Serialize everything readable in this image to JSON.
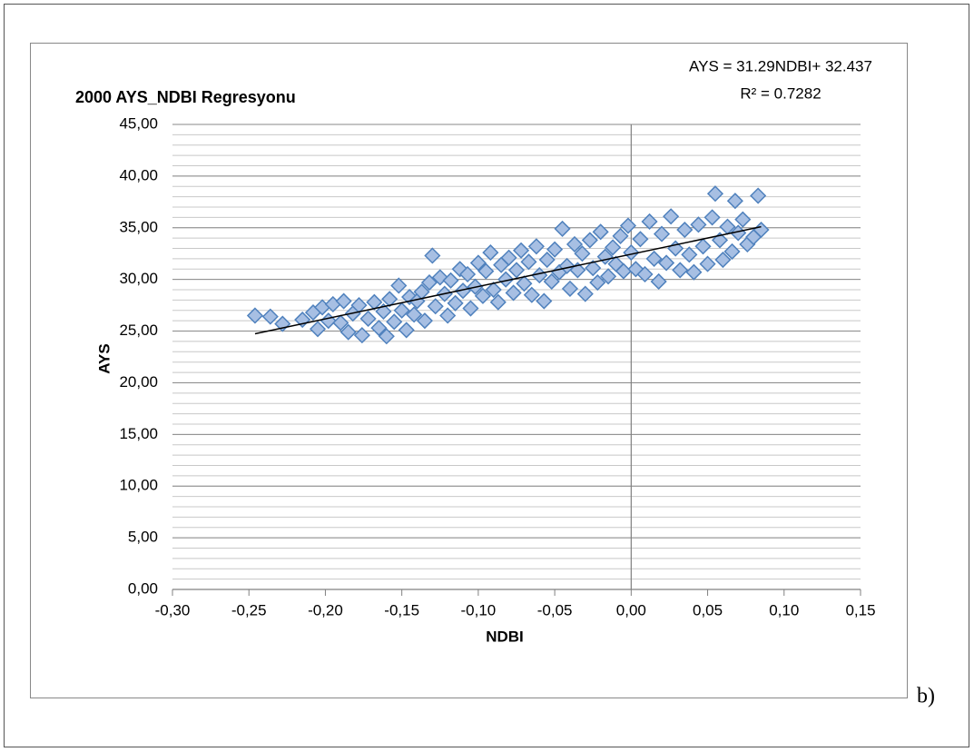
{
  "chart_data": {
    "type": "scatter",
    "title": "2000 AYS_NDBI Regresyonu",
    "equation": "AYS = 31.29NDBI+ 32.437",
    "r_squared": "R² = 0.7282",
    "xlabel": "NDBI",
    "ylabel": "AYS",
    "color": "#4f81bd",
    "fill": "#a7bfe3",
    "x": [
      -0.246,
      -0.236,
      -0.228,
      -0.215,
      -0.208,
      -0.205,
      -0.202,
      -0.198,
      -0.195,
      -0.19,
      -0.188,
      -0.185,
      -0.182,
      -0.178,
      -0.176,
      -0.172,
      -0.168,
      -0.165,
      -0.162,
      -0.16,
      -0.158,
      -0.155,
      -0.152,
      -0.15,
      -0.147,
      -0.145,
      -0.142,
      -0.14,
      -0.137,
      -0.135,
      -0.132,
      -0.13,
      -0.128,
      -0.125,
      -0.122,
      -0.12,
      -0.118,
      -0.115,
      -0.112,
      -0.11,
      -0.107,
      -0.105,
      -0.102,
      -0.1,
      -0.097,
      -0.095,
      -0.092,
      -0.09,
      -0.087,
      -0.085,
      -0.082,
      -0.08,
      -0.077,
      -0.075,
      -0.072,
      -0.07,
      -0.067,
      -0.065,
      -0.062,
      -0.06,
      -0.057,
      -0.055,
      -0.052,
      -0.05,
      -0.047,
      -0.045,
      -0.042,
      -0.04,
      -0.037,
      -0.035,
      -0.032,
      -0.03,
      -0.027,
      -0.025,
      -0.022,
      -0.02,
      -0.017,
      -0.015,
      -0.012,
      -0.01,
      -0.007,
      -0.005,
      -0.002,
      0.0,
      0.003,
      0.006,
      0.009,
      0.012,
      0.015,
      0.018,
      0.02,
      0.023,
      0.026,
      0.029,
      0.032,
      0.035,
      0.038,
      0.041,
      0.044,
      0.047,
      0.05,
      0.053,
      0.055,
      0.058,
      0.06,
      0.063,
      0.066,
      0.068,
      0.07,
      0.073,
      0.076,
      0.08,
      0.083,
      0.085
    ],
    "values": [
      26.5,
      26.4,
      25.7,
      26.1,
      26.8,
      25.2,
      27.3,
      26.0,
      27.6,
      25.8,
      27.9,
      24.9,
      26.7,
      27.5,
      24.6,
      26.2,
      27.8,
      25.3,
      26.9,
      24.5,
      28.1,
      25.9,
      29.4,
      27.0,
      25.1,
      28.3,
      26.6,
      27.9,
      28.8,
      26.0,
      29.7,
      32.3,
      27.4,
      30.2,
      28.6,
      26.5,
      29.9,
      27.7,
      31.0,
      28.9,
      30.5,
      27.2,
      29.3,
      31.6,
      28.4,
      30.8,
      32.6,
      29.0,
      27.8,
      31.4,
      30.0,
      32.1,
      28.7,
      30.9,
      32.8,
      29.6,
      31.7,
      28.5,
      33.2,
      30.4,
      27.9,
      31.9,
      29.8,
      32.9,
      30.7,
      34.9,
      31.3,
      29.1,
      33.4,
      30.9,
      32.5,
      28.6,
      33.8,
      31.1,
      29.7,
      34.6,
      32.2,
      30.3,
      33.1,
      31.5,
      34.2,
      30.8,
      35.2,
      32.6,
      31.0,
      33.9,
      30.5,
      35.6,
      32.0,
      29.8,
      34.4,
      31.6,
      36.1,
      33.0,
      30.9,
      34.8,
      32.4,
      30.7,
      35.3,
      33.2,
      31.5,
      36.0,
      38.3,
      33.8,
      31.9,
      35.1,
      32.7,
      37.6,
      34.5,
      35.8,
      33.4,
      34.1,
      38.1,
      34.8
    ],
    "trendline": {
      "x": [
        -0.246,
        0.085
      ],
      "y": [
        24.74,
        35.1
      ]
    },
    "xlim": [
      -0.3,
      0.15
    ],
    "xticks": [
      {
        "value": -0.3,
        "label": "-0,30"
      },
      {
        "value": -0.25,
        "label": "-0,25"
      },
      {
        "value": -0.2,
        "label": "-0,20"
      },
      {
        "value": -0.15,
        "label": "-0,15"
      },
      {
        "value": -0.1,
        "label": "-0,10"
      },
      {
        "value": -0.05,
        "label": "-0,05"
      },
      {
        "value": 0,
        "label": "0,00"
      },
      {
        "value": 0.05,
        "label": "0,05"
      },
      {
        "value": 0.1,
        "label": "0,10"
      },
      {
        "value": 0.15,
        "label": "0,15"
      }
    ],
    "ylim": [
      0,
      45
    ],
    "yticks": [
      {
        "value": 0,
        "label": "0,00"
      },
      {
        "value": 5,
        "label": "5,00"
      },
      {
        "value": 10,
        "label": "10,00"
      },
      {
        "value": 15,
        "label": "15,00"
      },
      {
        "value": 20,
        "label": "20,00"
      },
      {
        "value": 25,
        "label": "25,00"
      },
      {
        "value": 30,
        "label": "30,00"
      },
      {
        "value": 35,
        "label": "35,00"
      },
      {
        "value": 40,
        "label": "40,00"
      },
      {
        "value": 45,
        "label": "45,00"
      }
    ],
    "yminor": 1,
    "grid": true
  },
  "panel_label": "b)"
}
